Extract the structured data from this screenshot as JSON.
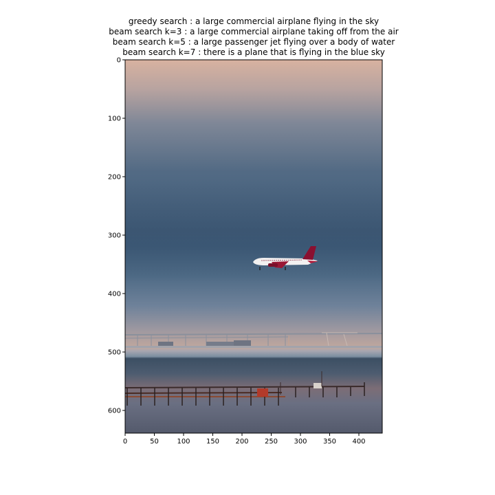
{
  "captions": [
    "greedy search : a large commercial airplane flying in the sky",
    "beam search k=3 :  a large commercial airplane taking off from the air",
    "beam search k=5 :  a large passenger jet flying over a body of water",
    "beam search k=7 :  there is a plane that is flying in the blue sky"
  ],
  "axes": {
    "x_ticks": [
      "0",
      "50",
      "100",
      "150",
      "200",
      "250",
      "300",
      "350",
      "400"
    ],
    "y_ticks": [
      "0",
      "100",
      "200",
      "300",
      "400",
      "500",
      "600"
    ]
  }
}
